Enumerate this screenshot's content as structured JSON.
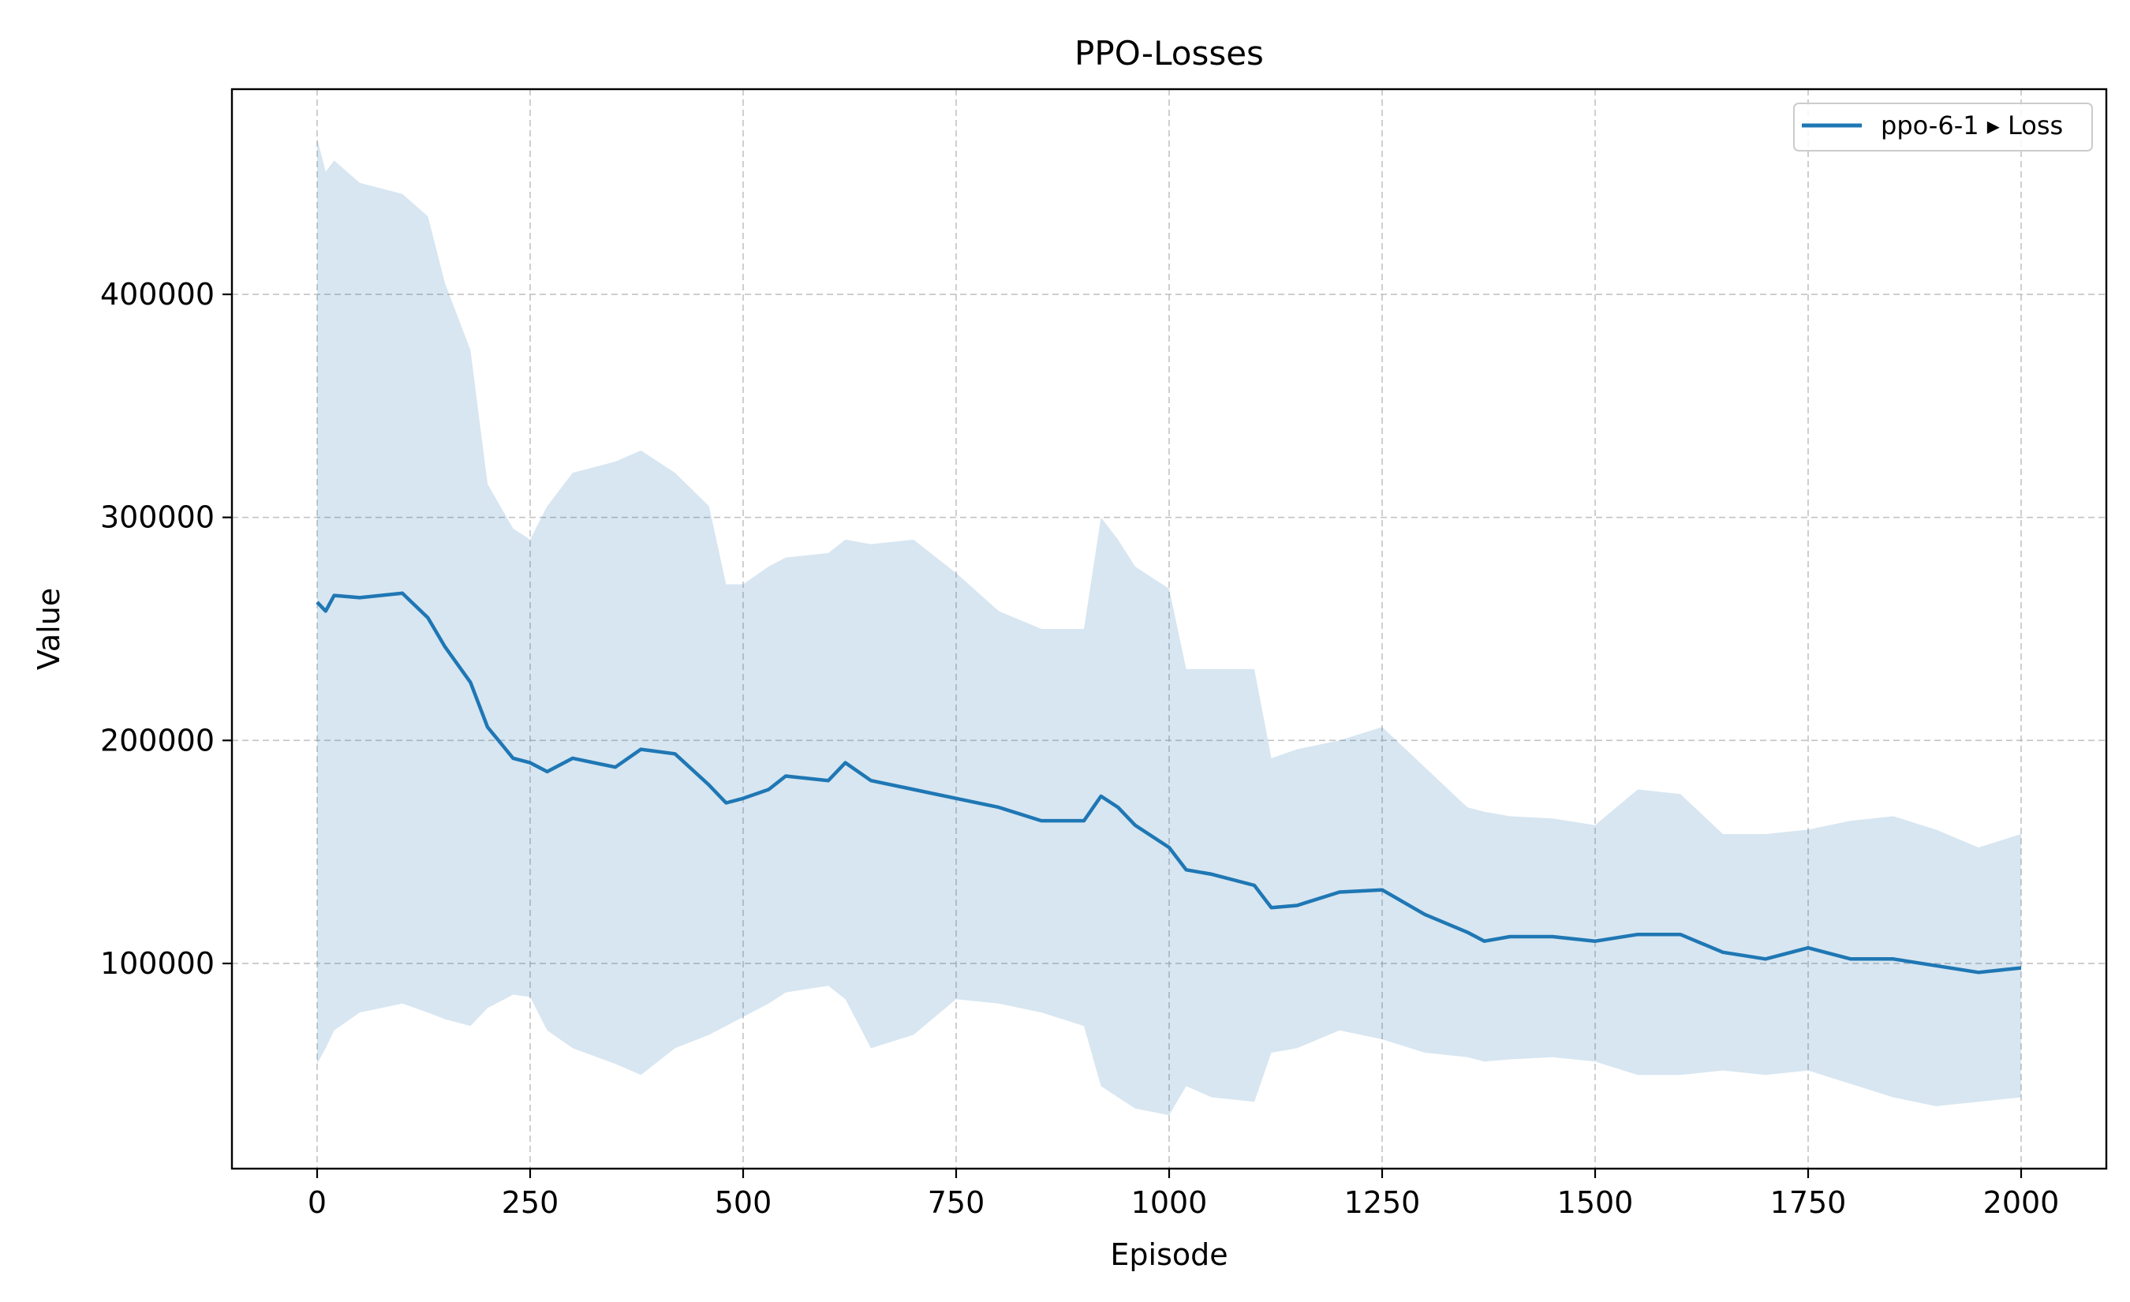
{
  "chart_data": {
    "type": "line",
    "title": "PPO-Losses",
    "xlabel": "Episode",
    "ylabel": "Value",
    "xlim": [
      -100,
      2100
    ],
    "ylim": [
      8000,
      492000
    ],
    "xticks": [
      0,
      250,
      500,
      750,
      1000,
      1250,
      1500,
      1750,
      2000
    ],
    "yticks": [
      100000,
      200000,
      300000,
      400000
    ],
    "xtick_labels": [
      "0",
      "250",
      "500",
      "750",
      "1000",
      "1250",
      "1500",
      "1750",
      "2000"
    ],
    "ytick_labels": [
      "100000",
      "200000",
      "300000",
      "400000"
    ],
    "grid": true,
    "legend": {
      "placement": "upper-right",
      "entries": [
        "ppo-6-1 ▸ Loss"
      ]
    },
    "colors": {
      "line": "#1f77b4",
      "band": "#1f77b4",
      "band_opacity": 0.18
    },
    "series": [
      {
        "name": "ppo-6-1 ▸ Loss",
        "x": [
          0,
          10,
          20,
          50,
          100,
          130,
          150,
          180,
          200,
          230,
          250,
          270,
          300,
          350,
          380,
          420,
          460,
          480,
          500,
          530,
          550,
          600,
          620,
          650,
          700,
          750,
          800,
          850,
          900,
          920,
          940,
          960,
          1000,
          1020,
          1050,
          1100,
          1120,
          1150,
          1200,
          1250,
          1300,
          1350,
          1370,
          1400,
          1450,
          1500,
          1550,
          1600,
          1650,
          1700,
          1750,
          1800,
          1850,
          1900,
          1950,
          2000
        ],
        "y": [
          262000,
          258000,
          265000,
          264000,
          266000,
          255000,
          242000,
          226000,
          206000,
          192000,
          190000,
          186000,
          192000,
          188000,
          196000,
          194000,
          180000,
          172000,
          174000,
          178000,
          184000,
          182000,
          190000,
          182000,
          178000,
          174000,
          170000,
          164000,
          164000,
          175000,
          170000,
          162000,
          152000,
          142000,
          140000,
          135000,
          125000,
          126000,
          132000,
          133000,
          122000,
          114000,
          110000,
          112000,
          112000,
          110000,
          113000,
          113000,
          105000,
          102000,
          107000,
          102000,
          102000,
          99000,
          96000,
          98000
        ],
        "upper": [
          470000,
          455000,
          460000,
          450000,
          445000,
          435000,
          405000,
          375000,
          315000,
          295000,
          290000,
          305000,
          320000,
          325000,
          330000,
          320000,
          305000,
          270000,
          270000,
          278000,
          282000,
          284000,
          290000,
          288000,
          290000,
          275000,
          258000,
          250000,
          250000,
          300000,
          290000,
          278000,
          268000,
          232000,
          232000,
          232000,
          192000,
          196000,
          200000,
          206000,
          188000,
          170000,
          168000,
          166000,
          165000,
          162000,
          178000,
          176000,
          158000,
          158000,
          160000,
          164000,
          166000,
          160000,
          152000,
          158000
        ],
        "lower": [
          55000,
          62000,
          70000,
          78000,
          82000,
          78000,
          75000,
          72000,
          80000,
          86000,
          85000,
          70000,
          62000,
          55000,
          50000,
          62000,
          68000,
          72000,
          76000,
          82000,
          87000,
          90000,
          84000,
          62000,
          68000,
          84000,
          82000,
          78000,
          72000,
          45000,
          40000,
          35000,
          32000,
          45000,
          40000,
          38000,
          60000,
          62000,
          70000,
          66000,
          60000,
          58000,
          56000,
          57000,
          58000,
          56000,
          50000,
          50000,
          52000,
          50000,
          52000,
          46000,
          40000,
          36000,
          38000,
          40000
        ]
      }
    ]
  }
}
